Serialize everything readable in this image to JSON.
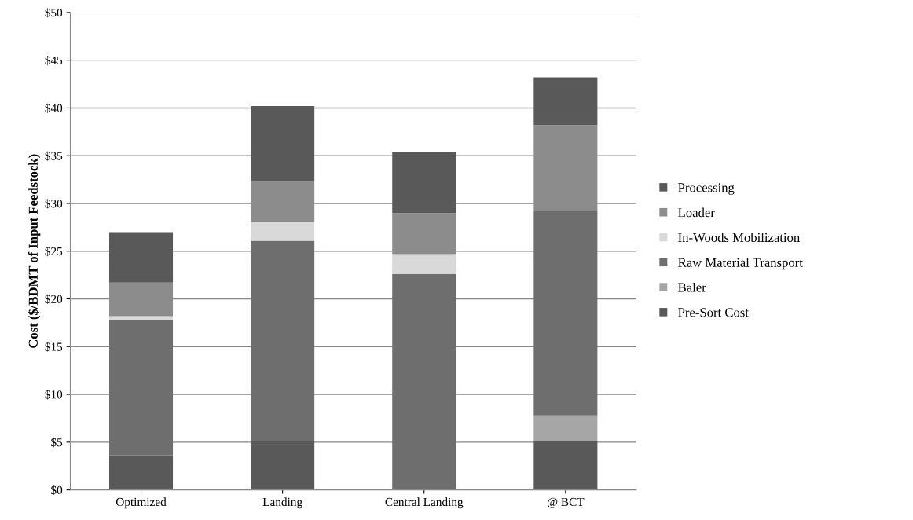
{
  "chart_data": {
    "type": "bar",
    "stacked": true,
    "ylabel": "Cost ($/BDMT of Input Feedstock)",
    "categories": [
      "Optimized",
      "Landing",
      "Central Landing",
      "@ BCT"
    ],
    "series": [
      {
        "name": "Pre-Sort Cost",
        "color": "#595959",
        "values": [
          3.6,
          5.1,
          0,
          5.1
        ]
      },
      {
        "name": "Baler",
        "color": "#a6a6a6",
        "values": [
          0,
          0,
          0,
          2.7
        ]
      },
      {
        "name": "Raw Material Transport",
        "color": "#6e6e6e",
        "values": [
          14.2,
          21.0,
          22.6,
          21.4
        ]
      },
      {
        "name": "In-Woods Mobilization",
        "color": "#d9d9d9",
        "values": [
          0.4,
          2.0,
          2.1,
          0
        ]
      },
      {
        "name": "Loader",
        "color": "#8c8c8c",
        "values": [
          3.5,
          4.2,
          4.3,
          9.0
        ]
      },
      {
        "name": "Processing",
        "color": "#595959",
        "values": [
          5.3,
          7.9,
          6.4,
          5.0
        ]
      }
    ],
    "ylim": [
      0,
      50
    ],
    "yticks": [
      {
        "value": 0,
        "label": "$0"
      },
      {
        "value": 5,
        "label": "$5"
      },
      {
        "value": 10,
        "label": "$10"
      },
      {
        "value": 15,
        "label": "$15"
      },
      {
        "value": 20,
        "label": "$20"
      },
      {
        "value": 25,
        "label": "$25"
      },
      {
        "value": 30,
        "label": "$30"
      },
      {
        "value": 35,
        "label": "$35"
      },
      {
        "value": 40,
        "label": "$40"
      },
      {
        "value": 45,
        "label": "$45"
      },
      {
        "value": 50,
        "label": "$50"
      }
    ],
    "grid": "y",
    "legend": "right"
  }
}
